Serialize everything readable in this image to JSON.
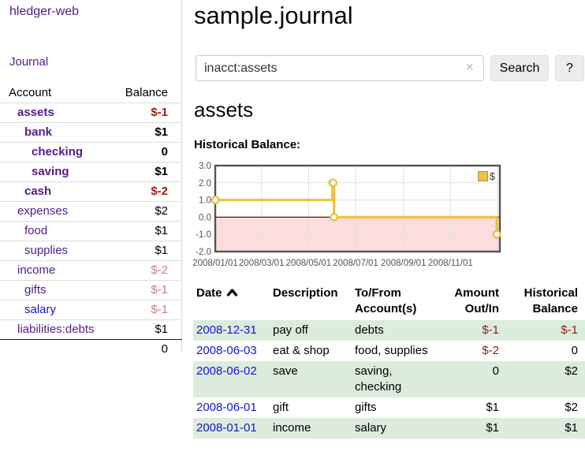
{
  "app": {
    "brand": "hledger-web",
    "nav": {
      "journal": "Journal"
    }
  },
  "sidebar": {
    "header": {
      "account": "Account",
      "balance": "Balance"
    },
    "accounts": [
      {
        "name": "assets",
        "indent": 0,
        "balance": "$-1",
        "bold": true,
        "neg": "neg-strong",
        "blue": false
      },
      {
        "name": "bank",
        "indent": 1,
        "balance": "$1",
        "bold": true,
        "neg": "",
        "blue": false
      },
      {
        "name": "checking",
        "indent": 2,
        "balance": "0",
        "bold": true,
        "neg": "",
        "blue": false
      },
      {
        "name": "saving",
        "indent": 2,
        "balance": "$1",
        "bold": true,
        "neg": "",
        "blue": false
      },
      {
        "name": "cash",
        "indent": 1,
        "balance": "$-2",
        "bold": true,
        "neg": "neg-strong",
        "blue": false
      },
      {
        "name": "expenses",
        "indent": 0,
        "balance": "$2",
        "bold": false,
        "neg": "",
        "blue": false
      },
      {
        "name": "food",
        "indent": 1,
        "balance": "$1",
        "bold": false,
        "neg": "",
        "blue": false
      },
      {
        "name": "supplies",
        "indent": 1,
        "balance": "$1",
        "bold": false,
        "neg": "",
        "blue": false
      },
      {
        "name": "income",
        "indent": 0,
        "balance": "$-2",
        "bold": false,
        "neg": "neg-soft",
        "blue": false
      },
      {
        "name": "gifts",
        "indent": 1,
        "balance": "$-1",
        "bold": false,
        "neg": "neg-soft",
        "blue": false
      },
      {
        "name": "salary",
        "indent": 1,
        "balance": "$-1",
        "bold": false,
        "neg": "neg-soft",
        "blue": true
      },
      {
        "name": "liabilities:debts",
        "indent": 0,
        "balance": "$1",
        "bold": false,
        "neg": "",
        "blue": false
      }
    ],
    "total": "0"
  },
  "main": {
    "title": "sample.journal",
    "search": {
      "value": "inacct:assets",
      "clear_icon": "×",
      "search_button": "Search",
      "help_button": "?"
    },
    "account_heading": "assets",
    "chart_title": "Historical Balance:"
  },
  "chart_data": {
    "type": "line",
    "line_style": "step",
    "title": "Historical Balance",
    "legend": {
      "label": "$",
      "position": "top-right",
      "swatch_color": "#edc240"
    },
    "series": [
      {
        "name": "$",
        "color": "#edc240",
        "points": [
          {
            "date": "2008/01/01",
            "day": 0,
            "value": 1.0
          },
          {
            "date": "2008/06/01",
            "day": 152,
            "value": 2.0
          },
          {
            "date": "2008/06/02",
            "day": 153,
            "value": 2.0
          },
          {
            "date": "2008/06/03",
            "day": 154,
            "value": 0.0
          },
          {
            "date": "2008/12/31",
            "day": 365,
            "value": -1.0
          }
        ]
      }
    ],
    "ylim": [
      -2.0,
      3.0
    ],
    "ytick_labels": [
      "3.0",
      "2.0",
      "1.0",
      "0.0",
      "-1.0",
      "-2.0"
    ],
    "ytick_values": [
      3,
      2,
      1,
      0,
      -1,
      -2
    ],
    "xlim_days": [
      0,
      369
    ],
    "xticks": [
      {
        "label": "2008/01/01",
        "day": 0
      },
      {
        "label": "2008/03/01",
        "day": 60
      },
      {
        "label": "2008/05/01",
        "day": 121
      },
      {
        "label": "2008/07/01",
        "day": 182
      },
      {
        "label": "2008/09/01",
        "day": 244
      },
      {
        "label": "2008/11/01",
        "day": 305
      }
    ],
    "extra_gridline_days": [
      366
    ],
    "grid": true,
    "colors": {
      "negative_region_fill": "#fcdcdc",
      "zero_line": "#8b0000",
      "grid": "#e0e0e0",
      "border": "#545454",
      "tick_text": "#545454"
    }
  },
  "transactions": {
    "headers": {
      "date": "Date",
      "description": "Description",
      "accounts": "To/From\nAccount(s)",
      "amount": "Amount\nOut/In",
      "balance": "Historical\nBalance"
    },
    "sort": {
      "column": "date",
      "direction": "ascending"
    },
    "rows": [
      {
        "date": "2008-12-31",
        "description": "pay off",
        "accounts": "debts",
        "amount": "$-1",
        "balance": "$-1"
      },
      {
        "date": "2008-06-03",
        "description": "eat & shop",
        "accounts": "food, supplies",
        "amount": "$-2",
        "balance": "0"
      },
      {
        "date": "2008-06-02",
        "description": "save",
        "accounts": "saving,\nchecking",
        "amount": "0",
        "balance": "$2"
      },
      {
        "date": "2008-06-01",
        "description": "gift",
        "accounts": "gifts",
        "amount": "$1",
        "balance": "$2"
      },
      {
        "date": "2008-01-01",
        "description": "income",
        "accounts": "salary",
        "amount": "$1",
        "balance": "$1"
      }
    ]
  }
}
